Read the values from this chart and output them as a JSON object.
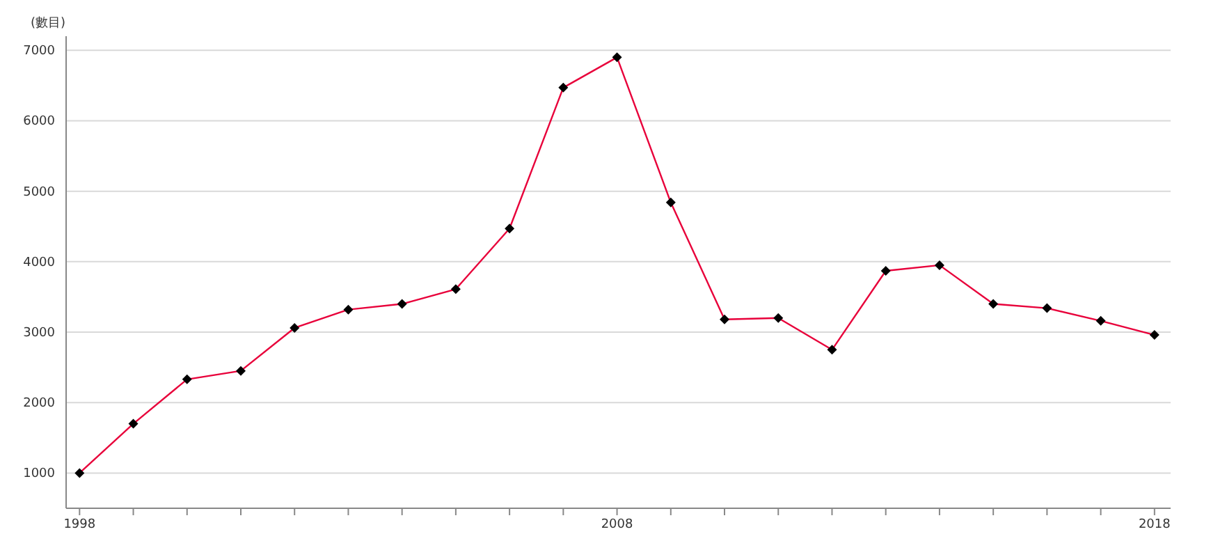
{
  "chart_data": {
    "type": "line",
    "ylabel": "(數目)",
    "x": [
      1998,
      1999,
      2000,
      2001,
      2002,
      2003,
      2004,
      2005,
      2006,
      2007,
      2008,
      2009,
      2010,
      2011,
      2012,
      2013,
      2014,
      2015,
      2016,
      2017,
      2018
    ],
    "series": [
      {
        "color": "#e8003a",
        "values": [
          1000,
          1700,
          2330,
          2450,
          3060,
          3320,
          3400,
          3610,
          4470,
          6470,
          6900,
          4840,
          3180,
          3200,
          2750,
          3870,
          3950,
          3400,
          3340,
          3160,
          2960
        ]
      }
    ],
    "xlim": [
      1997.75,
      2018.3
    ],
    "ylim": [
      500,
      7200
    ],
    "xticks": [
      1998,
      {
        "value": 1999,
        "label": null
      },
      {
        "value": 2000,
        "label": null
      },
      {
        "value": 2001,
        "label": null
      },
      {
        "value": 2002,
        "label": null
      },
      {
        "value": 2003,
        "label": null
      },
      {
        "value": 2004,
        "label": null
      },
      {
        "value": 2005,
        "label": null
      },
      {
        "value": 2006,
        "label": null
      },
      {
        "value": 2007,
        "label": null
      },
      2008,
      {
        "value": 2009,
        "label": null
      },
      {
        "value": 2010,
        "label": null
      },
      {
        "value": 2011,
        "label": null
      },
      {
        "value": 2012,
        "label": null
      },
      {
        "value": 2013,
        "label": null
      },
      {
        "value": 2014,
        "label": null
      },
      {
        "value": 2015,
        "label": null
      },
      {
        "value": 2016,
        "label": null
      },
      {
        "value": 2017,
        "label": null
      },
      2018
    ],
    "yticks": [
      1000,
      2000,
      3000,
      4000,
      5000,
      6000,
      7000
    ],
    "grid": "y",
    "marker": "diamond",
    "line_style": "solid"
  }
}
